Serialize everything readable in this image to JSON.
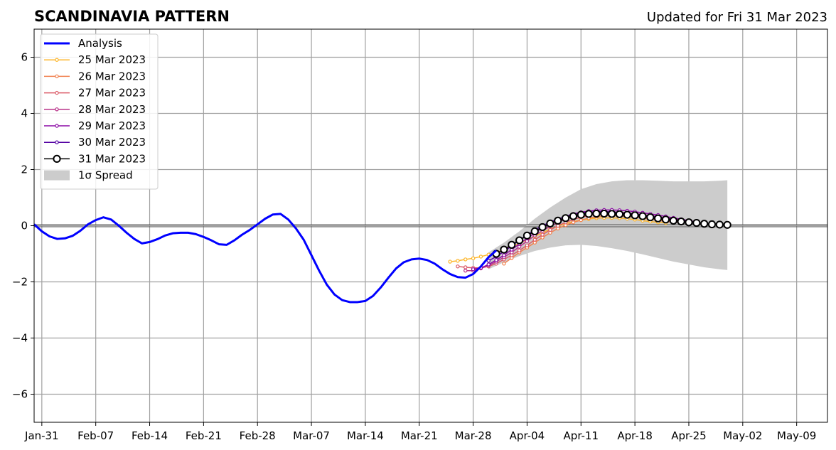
{
  "chart_data": {
    "type": "line",
    "title": "SCANDINAVIA PATTERN",
    "subtitle": "Updated for Fri 31 Mar 2023",
    "xlabel": "",
    "ylabel": "",
    "x_ticks": [
      "Jan-31",
      "Feb-07",
      "Feb-14",
      "Feb-21",
      "Feb-28",
      "Mar-07",
      "Mar-14",
      "Mar-21",
      "Mar-28",
      "Apr-04",
      "Apr-11",
      "Apr-18",
      "Apr-25",
      "May-02",
      "May-09"
    ],
    "x_tick_days": [
      0,
      7,
      14,
      21,
      28,
      35,
      42,
      49,
      56,
      63,
      70,
      77,
      84,
      91,
      98
    ],
    "xlim_days": [
      -1,
      102
    ],
    "ylim": [
      -7,
      7
    ],
    "y_ticks": [
      -6,
      -4,
      -2,
      0,
      2,
      4,
      6
    ],
    "y_tick_labels": [
      "−6",
      "−4",
      "−2",
      "0",
      "2",
      "4",
      "6"
    ],
    "grid": true,
    "legend_position": "top-left",
    "analysis": {
      "name": "Analysis",
      "color": "#0000ff",
      "x_start_day": -1,
      "values": [
        0.05,
        -0.2,
        -0.38,
        -0.47,
        -0.45,
        -0.36,
        -0.18,
        0.05,
        0.2,
        0.3,
        0.22,
        0.0,
        -0.25,
        -0.47,
        -0.63,
        -0.58,
        -0.48,
        -0.35,
        -0.27,
        -0.25,
        -0.25,
        -0.3,
        -0.4,
        -0.52,
        -0.66,
        -0.68,
        -0.52,
        -0.32,
        -0.15,
        0.05,
        0.25,
        0.4,
        0.42,
        0.22,
        -0.1,
        -0.5,
        -1.05,
        -1.6,
        -2.1,
        -2.45,
        -2.65,
        -2.72,
        -2.72,
        -2.68,
        -2.5,
        -2.2,
        -1.85,
        -1.52,
        -1.3,
        -1.2,
        -1.17,
        -1.22,
        -1.35,
        -1.55,
        -1.72,
        -1.83,
        -1.85,
        -1.72,
        -1.45,
        -1.12,
        -0.88
      ]
    },
    "spread": {
      "name": "1σ Spread",
      "color": "#cccccc",
      "x_days": [
        58,
        60,
        62,
        64,
        66,
        68,
        70,
        72,
        74,
        76,
        78,
        80,
        82,
        84,
        86,
        88,
        89
      ],
      "upper": [
        -0.95,
        -0.6,
        -0.2,
        0.25,
        0.65,
        1.0,
        1.3,
        1.48,
        1.58,
        1.62,
        1.62,
        1.6,
        1.58,
        1.58,
        1.58,
        1.6,
        1.62
      ],
      "lower": [
        -1.55,
        -1.3,
        -1.08,
        -0.9,
        -0.78,
        -0.7,
        -0.68,
        -0.72,
        -0.8,
        -0.9,
        -1.02,
        -1.15,
        -1.28,
        -1.38,
        -1.48,
        -1.55,
        -1.58
      ]
    },
    "series": [
      {
        "name": "25 Mar 2023",
        "color": "#fdb62b",
        "x_days": [
          53,
          54,
          55,
          56,
          57,
          58,
          59,
          60,
          61,
          62,
          63,
          64,
          65,
          66,
          67,
          68,
          69,
          70,
          71,
          72,
          73,
          74,
          75,
          76,
          77,
          78,
          79,
          80,
          81
        ],
        "values": [
          -1.28,
          -1.25,
          -1.2,
          -1.16,
          -1.1,
          -1.03,
          -0.95,
          -0.85,
          -0.75,
          -0.63,
          -0.5,
          -0.38,
          -0.25,
          -0.12,
          -0.02,
          0.08,
          0.15,
          0.2,
          0.24,
          0.27,
          0.28,
          0.28,
          0.27,
          0.25,
          0.22,
          0.18,
          0.15,
          0.12,
          0.1
        ]
      },
      {
        "name": "26 Mar 2023",
        "color": "#f1814f",
        "x_days": [
          60,
          61,
          62,
          63,
          64,
          65,
          66,
          67,
          68,
          69,
          70,
          71,
          72,
          73,
          74,
          75,
          76,
          77,
          78,
          79,
          80,
          81,
          82
        ],
        "values": [
          -1.35,
          -1.15,
          -0.95,
          -0.78,
          -0.6,
          -0.42,
          -0.25,
          -0.1,
          0.02,
          0.12,
          0.2,
          0.27,
          0.32,
          0.35,
          0.36,
          0.35,
          0.33,
          0.3,
          0.27,
          0.23,
          0.19,
          0.15,
          0.12
        ]
      },
      {
        "name": "27 Mar 2023",
        "color": "#db5c68",
        "x_days": [
          54,
          55,
          56,
          57,
          58,
          59,
          60,
          61,
          62,
          63,
          64,
          65,
          66,
          67,
          68,
          69,
          70,
          71,
          72,
          73,
          74,
          75,
          76,
          77,
          78,
          79,
          80,
          81,
          82,
          83
        ],
        "values": [
          -1.45,
          -1.48,
          -1.5,
          -1.5,
          -1.45,
          -1.35,
          -1.2,
          -1.05,
          -0.88,
          -0.7,
          -0.5,
          -0.32,
          -0.15,
          0.0,
          0.12,
          0.22,
          0.3,
          0.36,
          0.4,
          0.42,
          0.42,
          0.41,
          0.39,
          0.36,
          0.32,
          0.28,
          0.23,
          0.18,
          0.14,
          0.1
        ]
      },
      {
        "name": "28 Mar 2023",
        "color": "#b83289",
        "x_days": [
          55,
          56,
          57,
          58,
          59,
          60,
          61,
          62,
          63,
          64,
          65,
          66,
          67,
          68,
          69,
          70,
          71,
          72,
          73,
          74,
          75,
          76,
          77,
          78,
          79,
          80,
          81,
          82,
          83,
          84
        ],
        "values": [
          -1.6,
          -1.6,
          -1.52,
          -1.42,
          -1.28,
          -1.12,
          -0.95,
          -0.75,
          -0.55,
          -0.35,
          -0.18,
          -0.02,
          0.12,
          0.24,
          0.33,
          0.4,
          0.45,
          0.48,
          0.5,
          0.5,
          0.48,
          0.46,
          0.43,
          0.4,
          0.36,
          0.32,
          0.28,
          0.24,
          0.2,
          0.16
        ]
      },
      {
        "name": "29 Mar 2023",
        "color": "#8b0aa5",
        "x_days": [
          56,
          57,
          58,
          59,
          60,
          61,
          62,
          63,
          64,
          65,
          66,
          67,
          68,
          69,
          70,
          71,
          72,
          73,
          74,
          75,
          76,
          77,
          78,
          79,
          80,
          81,
          82,
          83,
          84,
          85
        ],
        "values": [
          -1.55,
          -1.5,
          -1.38,
          -1.22,
          -1.05,
          -0.85,
          -0.65,
          -0.45,
          -0.25,
          -0.08,
          0.08,
          0.22,
          0.33,
          0.42,
          0.48,
          0.52,
          0.55,
          0.56,
          0.56,
          0.55,
          0.53,
          0.5,
          0.46,
          0.42,
          0.38,
          0.33,
          0.28,
          0.23,
          0.18,
          0.14
        ]
      },
      {
        "name": "30 Mar 2023",
        "color": "#5402a3",
        "x_days": [
          58,
          59,
          60,
          61,
          62,
          63,
          64,
          65,
          66,
          67,
          68,
          69,
          70,
          71,
          72,
          73,
          74,
          75,
          76,
          77,
          78,
          79,
          80,
          81,
          82,
          83,
          84,
          85
        ],
        "values": [
          -1.25,
          -1.1,
          -0.92,
          -0.72,
          -0.52,
          -0.33,
          -0.15,
          0.0,
          0.13,
          0.24,
          0.33,
          0.4,
          0.45,
          0.48,
          0.5,
          0.5,
          0.49,
          0.47,
          0.44,
          0.41,
          0.38,
          0.34,
          0.3,
          0.26,
          0.22,
          0.18,
          0.15,
          0.12
        ]
      },
      {
        "name": "31 Mar 2023",
        "color": "#000000",
        "x_days": [
          59,
          60,
          61,
          62,
          63,
          64,
          65,
          66,
          67,
          68,
          69,
          70,
          71,
          72,
          73,
          74,
          75,
          76,
          77,
          78,
          79,
          80,
          81,
          82,
          83,
          84,
          85,
          86,
          87,
          88,
          89
        ],
        "values": [
          -1.0,
          -0.85,
          -0.68,
          -0.52,
          -0.35,
          -0.2,
          -0.05,
          0.08,
          0.18,
          0.27,
          0.34,
          0.39,
          0.42,
          0.43,
          0.43,
          0.42,
          0.41,
          0.39,
          0.37,
          0.34,
          0.3,
          0.26,
          0.22,
          0.18,
          0.15,
          0.12,
          0.1,
          0.07,
          0.05,
          0.04,
          0.03
        ]
      }
    ],
    "legend": [
      "Analysis",
      "25 Mar 2023",
      "26 Mar 2023",
      "27 Mar 2023",
      "28 Mar 2023",
      "29 Mar 2023",
      "30 Mar 2023",
      "31 Mar 2023",
      "1σ Spread"
    ]
  }
}
